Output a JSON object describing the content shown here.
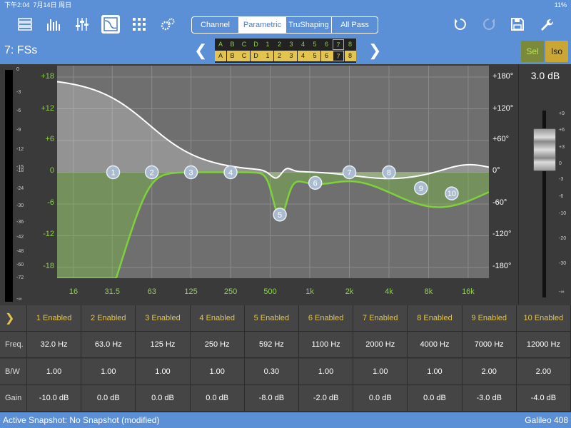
{
  "statusbar": {
    "time": "下午2:04",
    "date": "7月14日 周日",
    "right": "11%"
  },
  "toolbar": {
    "icons": [
      "processing-icon",
      "eq-bars-icon",
      "sliders-icon",
      "graph-icon",
      "matrix-icon",
      "settings-icon",
      "undo-icon",
      "redo-icon",
      "save-icon",
      "wrench-icon"
    ],
    "modes": [
      "Channel",
      "Parametric",
      "TruShaping",
      "All Pass"
    ],
    "active_mode": "Parametric"
  },
  "subbar": {
    "channel_name": "7: FSs",
    "grid_row1": [
      "A",
      "B",
      "C",
      "D",
      "1",
      "2",
      "3",
      "4",
      "5",
      "6",
      "7",
      "8"
    ],
    "grid_row2": [
      "A",
      "B",
      "C",
      "D",
      "1",
      "2",
      "3",
      "4",
      "5",
      "6",
      "7",
      "8"
    ],
    "sel_label": "Sel",
    "iso_label": "Iso"
  },
  "meter_ticks": [
    "0",
    "-3",
    "-6",
    "-9",
    "-12",
    "-15",
    "-18",
    "-24",
    "-30",
    "-36",
    "-42",
    "-48",
    "-60",
    "-72",
    "-∞"
  ],
  "plot": {
    "gain_labels": [
      "+18",
      "+12",
      "+6",
      "0",
      "-6",
      "-12",
      "-18"
    ],
    "phase_labels": [
      "+180°",
      "+120°",
      "+60°",
      "0°",
      "-60°",
      "-120°",
      "-180°"
    ],
    "freq_labels": [
      "16",
      "31.5",
      "63",
      "125",
      "250",
      "500",
      "1k",
      "2k",
      "4k",
      "8k",
      "16k"
    ],
    "colors": {
      "magnitude": "#7fd13b",
      "phase": "#ffffff",
      "bg": "#6f6f6f",
      "grid": "#8a8a8a"
    }
  },
  "fader": {
    "value": "3.0 dB",
    "ticks": [
      "+9",
      "+6",
      "+3",
      "0",
      "-3",
      "-6",
      "-10",
      "-20",
      "-30",
      "-∞"
    ]
  },
  "table": {
    "bands": [
      {
        "num": "1",
        "enabled": "1 Enabled",
        "freq": "32.0 Hz",
        "bw": "1.00",
        "gain": "-10.0 dB"
      },
      {
        "num": "2",
        "enabled": "2 Enabled",
        "freq": "63.0 Hz",
        "bw": "1.00",
        "gain": "0.0 dB"
      },
      {
        "num": "3",
        "enabled": "3 Enabled",
        "freq": "125 Hz",
        "bw": "1.00",
        "gain": "0.0 dB"
      },
      {
        "num": "4",
        "enabled": "4 Enabled",
        "freq": "250 Hz",
        "bw": "1.00",
        "gain": "0.0 dB"
      },
      {
        "num": "5",
        "enabled": "5 Enabled",
        "freq": "592 Hz",
        "bw": "0.30",
        "gain": "-8.0 dB"
      },
      {
        "num": "6",
        "enabled": "6 Enabled",
        "freq": "1100 Hz",
        "bw": "1.00",
        "gain": "-2.0 dB"
      },
      {
        "num": "7",
        "enabled": "7 Enabled",
        "freq": "2000 Hz",
        "bw": "1.00",
        "gain": "0.0 dB"
      },
      {
        "num": "8",
        "enabled": "8 Enabled",
        "freq": "4000 Hz",
        "bw": "1.00",
        "gain": "0.0 dB"
      },
      {
        "num": "9",
        "enabled": "9 Enabled",
        "freq": "7000 Hz",
        "bw": "2.00",
        "gain": "-3.0 dB"
      },
      {
        "num": "10",
        "enabled": "10 Enabled",
        "freq": "12000 Hz",
        "bw": "2.00",
        "gain": "-4.0 dB"
      }
    ],
    "row_labels": {
      "freq": "Freq.",
      "bw": "B/W",
      "gain": "Gain"
    }
  },
  "footer": {
    "snapshot": "Active Snapshot: No Snapshot (modified)",
    "device": "Galileo 408"
  }
}
